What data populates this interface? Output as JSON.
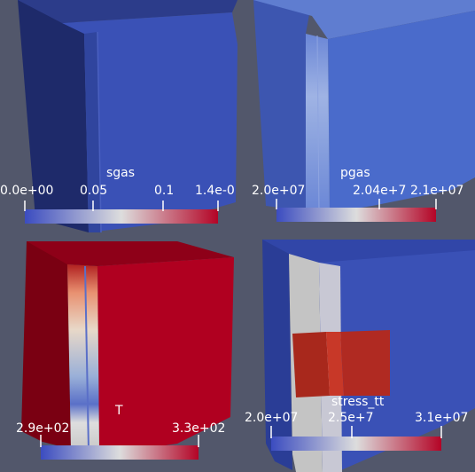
{
  "views": [
    {
      "id": "sgas",
      "colorbar": {
        "title": "sgas",
        "ticks": [
          "0.0e+00",
          "0.05",
          "0.1",
          "1.4e-0"
        ],
        "colors": [
          "#3b4cc0",
          "#dddddd",
          "#b40426"
        ]
      },
      "block_color": "#3a51b6"
    },
    {
      "id": "pgas",
      "colorbar": {
        "title": "pgas",
        "ticks": [
          "2.0e+07",
          "2.04e+7",
          "2.1e+07"
        ],
        "colors": [
          "#3b4cc0",
          "#dddddd",
          "#b40426"
        ]
      },
      "block_color": "#4a6bcb"
    },
    {
      "id": "T",
      "colorbar": {
        "title": "T",
        "ticks": [
          "2.9e+02",
          "3.3e+02"
        ],
        "colors": [
          "#3b4cc0",
          "#dddddd",
          "#b40426"
        ]
      },
      "block_color": "#b00020"
    },
    {
      "id": "stress_tt",
      "colorbar": {
        "title": "stress_tt",
        "ticks": [
          "2.0e+07",
          "2.5e+7",
          "3.1e+07"
        ],
        "colors": [
          "#3b4cc0",
          "#dddddd",
          "#b40426"
        ]
      },
      "block_color": "#3a51b6"
    }
  ]
}
